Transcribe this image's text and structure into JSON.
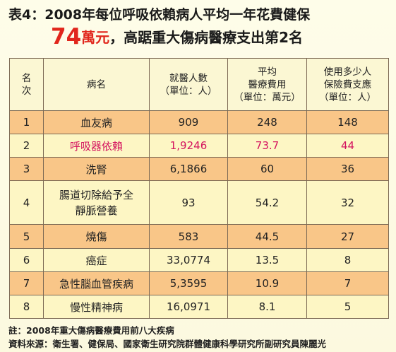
{
  "title": {
    "line1": "表4：2008年每位呼吸依賴病人平均一年花費健保",
    "amount": "74",
    "amount_unit": "萬元",
    "line2_rest": "，高踞重大傷病醫療支出第2名"
  },
  "table": {
    "headers": {
      "rank": [
        "名",
        "次"
      ],
      "disease": "病名",
      "patients": [
        "就醫人數",
        "（單位：人）"
      ],
      "avg_cost": [
        "平均",
        "醫療費用",
        "（單位：萬元）"
      ],
      "support": [
        "使用多少人",
        "保險費支應",
        "（單位：人）"
      ]
    },
    "rows": [
      {
        "rank": "1",
        "disease": "血友病",
        "patients": "909",
        "avg_cost": "248",
        "support": "148"
      },
      {
        "rank": "2",
        "disease": "呼吸器依賴",
        "patients": "1,9246",
        "avg_cost": "73.7",
        "support": "44"
      },
      {
        "rank": "3",
        "disease": "洗腎",
        "patients": "6,1866",
        "avg_cost": "60",
        "support": "36"
      },
      {
        "rank": "4",
        "disease_lines": [
          "腸道切除給予全",
          "靜脈營養"
        ],
        "patients": "93",
        "avg_cost": "54.2",
        "support": "32"
      },
      {
        "rank": "5",
        "disease": "燒傷",
        "patients": "583",
        "avg_cost": "44.5",
        "support": "27"
      },
      {
        "rank": "6",
        "disease": "癌症",
        "patients": "33,0774",
        "avg_cost": "13.5",
        "support": "8"
      },
      {
        "rank": "7",
        "disease": "急性腦血管疾病",
        "patients": "5,3595",
        "avg_cost": "10.9",
        "support": "7"
      },
      {
        "rank": "8",
        "disease": "慢性精神病",
        "patients": "16,0971",
        "avg_cost": "8.1",
        "support": "5"
      }
    ]
  },
  "notes": {
    "note1": "註：2008年重大傷病醫療費用前八大疾病",
    "note2": "資料來源：衛生署、健保局、國家衛生研究院群體健康科學研究所副研究員陳麗光"
  },
  "colors": {
    "title_red": "#e1261c",
    "highlight_text": "#d4135e",
    "row_orange": "#f9c688",
    "row_yellow": "#fdf6c4",
    "header_bg": "#fbf7d3",
    "border": "#7d6a55"
  }
}
